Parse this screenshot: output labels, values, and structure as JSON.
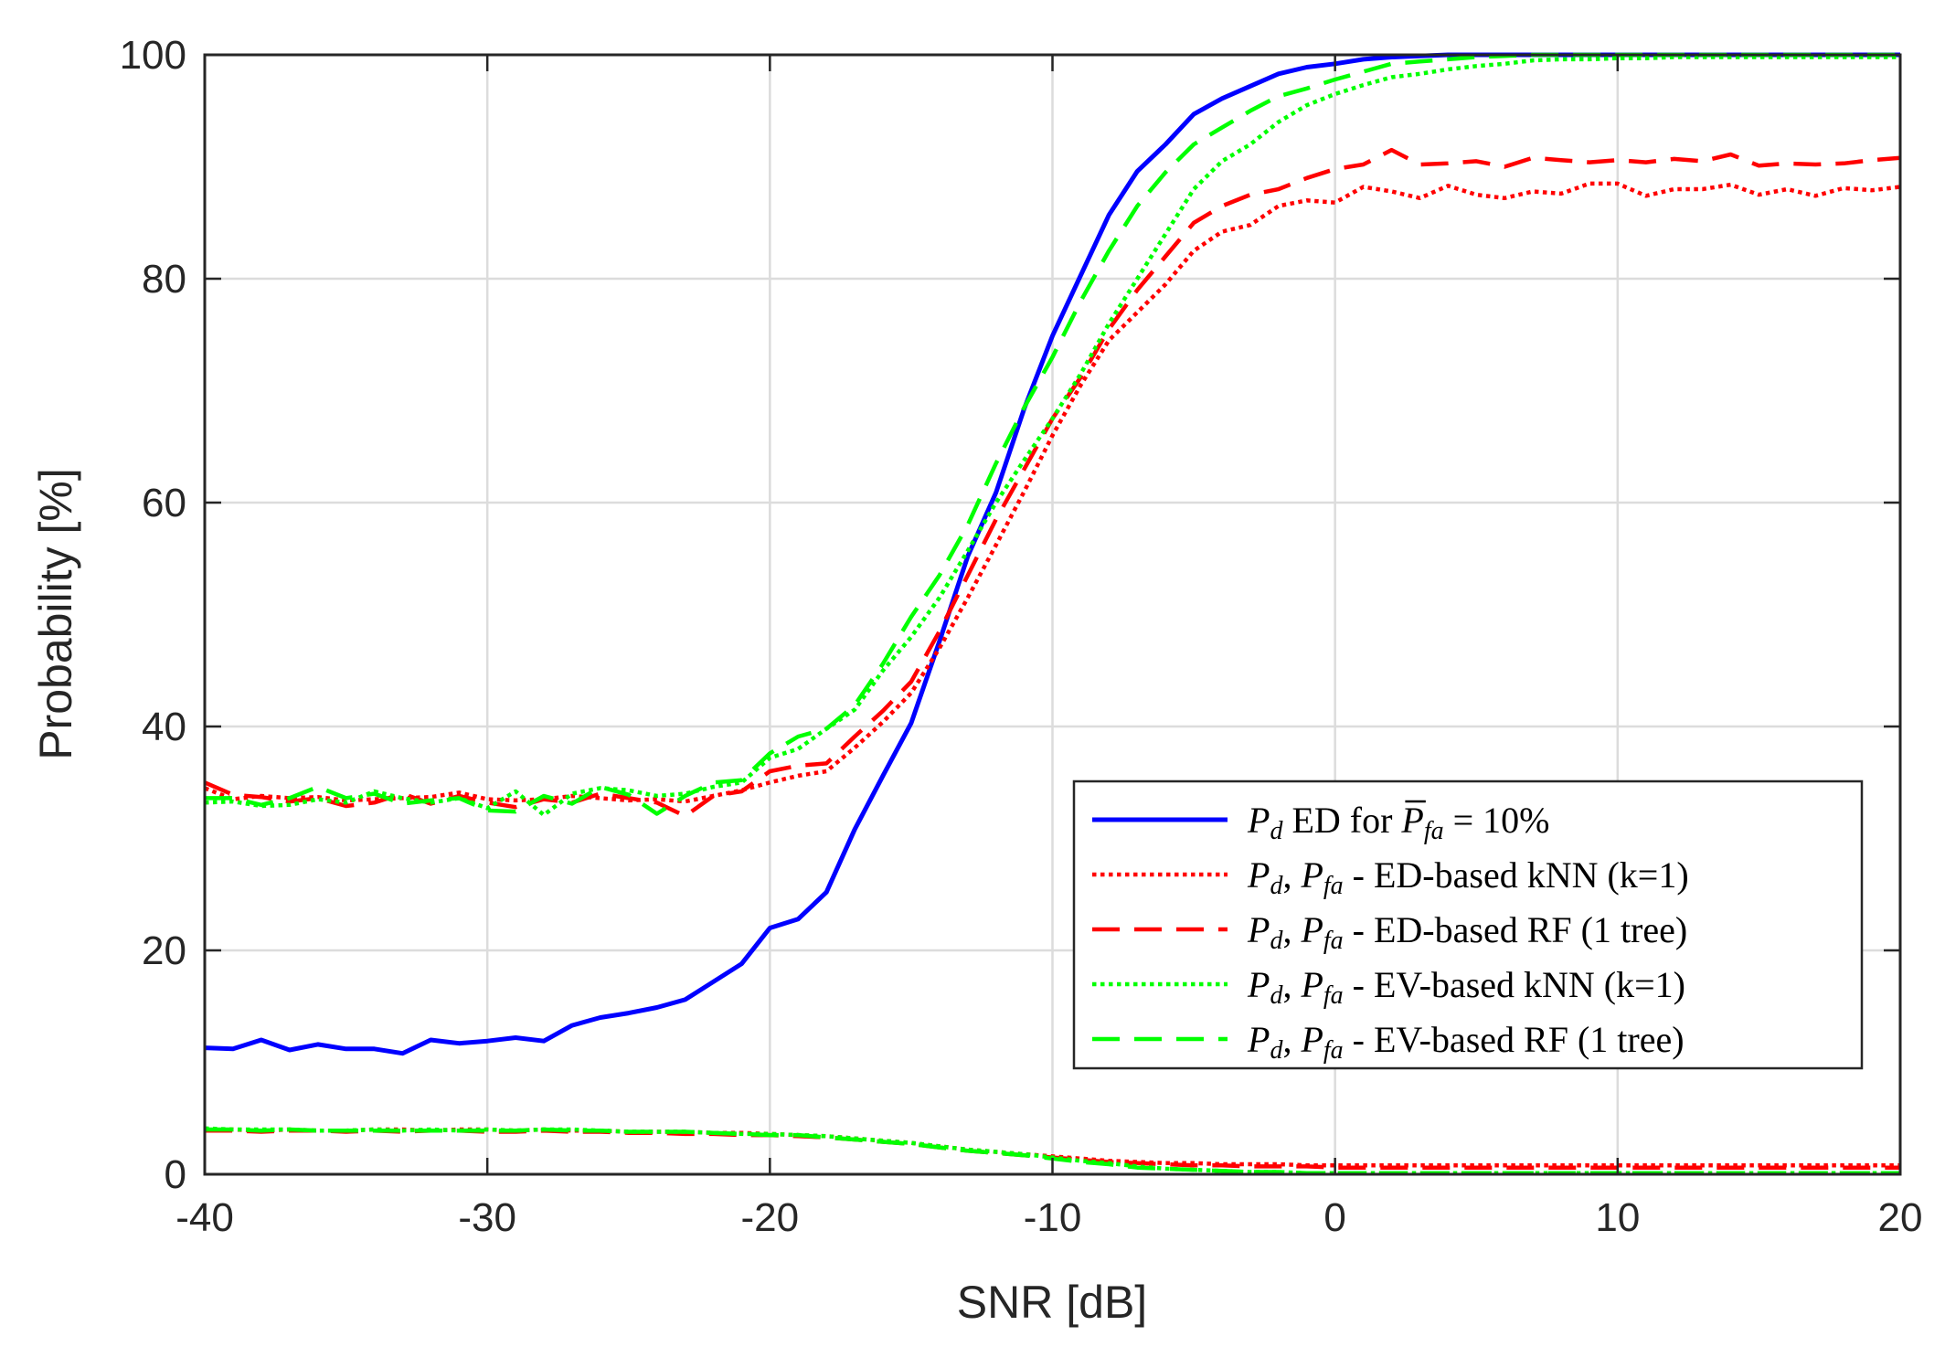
{
  "chart_data": {
    "type": "line",
    "title": "",
    "xlabel": "SNR [dB]",
    "ylabel": "Probability [%]",
    "xlim": [
      -40,
      20
    ],
    "ylim": [
      0,
      100
    ],
    "xticks": [
      "-40",
      "-30",
      "-20",
      "-10",
      "0",
      "10",
      "20"
    ],
    "yticks": [
      "0",
      "20",
      "40",
      "60",
      "80",
      "100"
    ],
    "grid": true,
    "legend_position": "lower-right",
    "x": [
      -40,
      -39,
      -38,
      -37,
      -36,
      -35,
      -34,
      -33,
      -32,
      -31,
      -30,
      -29,
      -28,
      -27,
      -26,
      -25,
      -24,
      -23,
      -22,
      -21,
      -20,
      -19,
      -18,
      -17,
      -16,
      -15,
      -14,
      -13,
      -12,
      -11,
      -10,
      -9,
      -8,
      -7,
      -6,
      -5,
      -4,
      -3,
      -2,
      -1,
      0,
      1,
      2,
      3,
      4,
      5,
      6,
      7,
      8,
      9,
      10,
      11,
      12,
      13,
      14,
      15,
      16,
      17,
      18,
      19,
      20
    ],
    "series": [
      {
        "name": "Pd ED for Pfa = 10%",
        "color": "#0000ff",
        "style": "solid",
        "values": [
          11.3,
          11.2,
          12.0,
          11.1,
          11.6,
          11.2,
          11.2,
          10.8,
          12.0,
          11.7,
          11.9,
          12.2,
          11.9,
          13.3,
          14.0,
          14.4,
          14.9,
          15.6,
          17.2,
          18.8,
          22.0,
          22.8,
          25.2,
          30.8,
          35.6,
          40.3,
          47.6,
          55.2,
          60.9,
          68.4,
          74.9,
          80.3,
          85.7,
          89.6,
          92.0,
          94.7,
          96.1,
          97.2,
          98.3,
          98.9,
          99.2,
          99.6,
          99.8,
          99.9,
          100,
          100,
          100,
          100,
          100,
          100,
          100,
          100,
          100,
          100,
          100,
          100,
          100,
          100,
          100,
          100,
          100
        ]
      },
      {
        "name": "Pd, Pfa - ED-based kNN (k=1)",
        "color": "#ff0000",
        "style": "dotted",
        "values": [
          34.5,
          33.5,
          33.8,
          33.6,
          33.7,
          33.4,
          33.5,
          33.6,
          33.7,
          34.1,
          33.5,
          33.4,
          33.5,
          33.8,
          33.6,
          33.4,
          33.5,
          33.3,
          33.8,
          34.3,
          35.0,
          35.6,
          36.0,
          38.1,
          40.4,
          43.0,
          47.0,
          51.5,
          56.2,
          61.0,
          66.0,
          70.5,
          74.5,
          77.0,
          79.5,
          82.5,
          84.2,
          84.8,
          86.5,
          87.0,
          86.8,
          88.2,
          87.8,
          87.2,
          88.3,
          87.5,
          87.2,
          87.8,
          87.6,
          88.5,
          88.5,
          87.4,
          88.0,
          88.0,
          88.4,
          87.5,
          88.0,
          87.4,
          88.1,
          87.9,
          88.2
        ]
      },
      {
        "name": "Pd, Pfa - ED-based RF (1 tree)",
        "color": "#ff0000",
        "style": "dashed",
        "values": [
          35.0,
          33.9,
          33.7,
          33.3,
          33.6,
          32.9,
          33.2,
          34.0,
          33.1,
          33.8,
          33.2,
          32.8,
          33.5,
          33.2,
          34.0,
          33.6,
          33.2,
          32.0,
          33.8,
          34.2,
          36.0,
          36.5,
          36.7,
          39.1,
          41.4,
          44.0,
          48.5,
          53.5,
          58.5,
          63.0,
          67.5,
          71.2,
          75.5,
          79.0,
          82.0,
          85.0,
          86.5,
          87.5,
          88.0,
          89.0,
          89.8,
          90.2,
          91.5,
          90.2,
          90.3,
          90.5,
          90.0,
          90.8,
          90.6,
          90.4,
          90.6,
          90.4,
          90.7,
          90.5,
          91.1,
          90.1,
          90.3,
          90.2,
          90.3,
          90.6,
          90.8
        ]
      },
      {
        "name": "Pd, Pfa - EV-based kNN (k=1)",
        "color": "#00ff00",
        "style": "dotted",
        "values": [
          33.2,
          33.3,
          32.9,
          33.0,
          33.5,
          33.2,
          34.2,
          33.6,
          33.2,
          33.6,
          32.7,
          34.2,
          32.1,
          34.0,
          34.5,
          34.3,
          33.8,
          34.0,
          34.6,
          35.0,
          37.2,
          38.0,
          39.8,
          41.5,
          45.0,
          48.0,
          51.5,
          55.7,
          60.0,
          63.8,
          67.5,
          71.5,
          76.0,
          80.0,
          84.0,
          88.0,
          90.5,
          92.0,
          94.0,
          95.5,
          96.5,
          97.3,
          98.0,
          98.3,
          98.7,
          99.0,
          99.2,
          99.5,
          99.6,
          99.6,
          99.7,
          99.7,
          99.8,
          99.8,
          99.8,
          99.8,
          99.8,
          99.8,
          99.8,
          99.8,
          99.8
        ]
      },
      {
        "name": "Pd, Pfa - EV-based RF (1 tree)",
        "color": "#00ff00",
        "style": "dashed",
        "values": [
          33.6,
          33.6,
          33.0,
          33.6,
          34.6,
          33.6,
          34.0,
          33.1,
          33.4,
          33.6,
          32.5,
          32.4,
          33.8,
          33.1,
          34.6,
          33.9,
          32.2,
          33.8,
          35.0,
          35.2,
          37.6,
          39.1,
          39.8,
          41.9,
          45.6,
          49.8,
          53.5,
          58.0,
          63.5,
          68.5,
          73.0,
          78.0,
          82.5,
          86.5,
          89.5,
          92.0,
          93.5,
          95.0,
          96.3,
          97.0,
          97.8,
          98.5,
          99.2,
          99.4,
          99.6,
          99.8,
          99.9,
          100,
          100,
          100,
          100,
          100,
          100,
          100,
          100,
          100,
          100,
          100,
          100,
          100,
          100
        ]
      },
      {
        "name": "Pfa - ED-based kNN (k=1)",
        "color": "#ff0000",
        "style": "dotted",
        "values": [
          4.0,
          4.0,
          3.9,
          4.0,
          3.9,
          3.9,
          4.0,
          4.0,
          3.9,
          4.0,
          4.0,
          3.9,
          4.0,
          3.9,
          3.9,
          3.8,
          3.8,
          3.8,
          3.7,
          3.7,
          3.6,
          3.5,
          3.4,
          3.2,
          3.0,
          2.8,
          2.5,
          2.2,
          2.0,
          1.8,
          1.6,
          1.4,
          1.2,
          1.1,
          1.0,
          1.0,
          0.9,
          0.9,
          0.9,
          0.8,
          0.8,
          0.8,
          0.8,
          0.8,
          0.8,
          0.8,
          0.8,
          0.8,
          0.8,
          0.8,
          0.8,
          0.8,
          0.8,
          0.8,
          0.8,
          0.8,
          0.8,
          0.8,
          0.8,
          0.8,
          0.8
        ]
      },
      {
        "name": "Pfa - ED-based RF (1 tree)",
        "color": "#ff0000",
        "style": "dashed",
        "values": [
          3.9,
          3.9,
          3.8,
          3.9,
          3.9,
          3.8,
          3.9,
          3.8,
          3.9,
          3.9,
          3.8,
          3.8,
          3.9,
          3.8,
          3.8,
          3.7,
          3.7,
          3.6,
          3.6,
          3.5,
          3.5,
          3.4,
          3.3,
          3.1,
          2.9,
          2.7,
          2.4,
          2.1,
          1.9,
          1.7,
          1.5,
          1.3,
          1.1,
          1.0,
          0.9,
          0.8,
          0.8,
          0.7,
          0.7,
          0.7,
          0.6,
          0.6,
          0.6,
          0.6,
          0.6,
          0.6,
          0.6,
          0.6,
          0.6,
          0.6,
          0.6,
          0.6,
          0.6,
          0.6,
          0.6,
          0.6,
          0.6,
          0.6,
          0.6,
          0.6,
          0.6
        ]
      },
      {
        "name": "Pfa - EV-based kNN (k=1)",
        "color": "#00ff00",
        "style": "dotted",
        "values": [
          4.1,
          4.0,
          4.0,
          4.0,
          3.9,
          3.9,
          4.0,
          3.9,
          4.0,
          3.9,
          4.0,
          3.9,
          4.0,
          4.0,
          3.9,
          3.8,
          3.8,
          3.8,
          3.7,
          3.6,
          3.6,
          3.5,
          3.4,
          3.2,
          3.0,
          2.8,
          2.5,
          2.2,
          2.0,
          1.8,
          1.5,
          1.2,
          1.0,
          0.7,
          0.5,
          0.4,
          0.3,
          0.2,
          0.2,
          0.1,
          0.1,
          0.1,
          0.1,
          0.1,
          0.1,
          0.1,
          0.1,
          0.1,
          0.1,
          0.1,
          0.1,
          0.1,
          0.1,
          0.1,
          0.1,
          0.1,
          0.1,
          0.1,
          0.1,
          0.1,
          0.1
        ]
      },
      {
        "name": "Pfa - EV-based RF (1 tree)",
        "color": "#00ff00",
        "style": "dashed",
        "values": [
          4.0,
          4.0,
          3.9,
          4.0,
          3.9,
          3.9,
          3.9,
          3.9,
          3.9,
          3.9,
          3.9,
          3.9,
          4.0,
          3.9,
          3.9,
          3.8,
          3.8,
          3.8,
          3.7,
          3.6,
          3.5,
          3.5,
          3.3,
          3.1,
          2.9,
          2.7,
          2.4,
          2.1,
          1.9,
          1.7,
          1.4,
          1.1,
          0.9,
          0.6,
          0.5,
          0.4,
          0.3,
          0.2,
          0.2,
          0.1,
          0.1,
          0.1,
          0.1,
          0.1,
          0.1,
          0.1,
          0.1,
          0.1,
          0.1,
          0.1,
          0.1,
          0.1,
          0.1,
          0.1,
          0.1,
          0.1,
          0.1,
          0.1,
          0.1,
          0.1,
          0.1
        ]
      }
    ],
    "legend": [
      {
        "color": "#0000ff",
        "style": "solid",
        "s1": "P",
        "s1sub": "d",
        "t1": " ED for ",
        "s2": "P",
        "s2sub": "fa",
        "t2": " = 10%"
      },
      {
        "color": "#ff0000",
        "style": "dotted",
        "s1": "P",
        "s1sub": "d",
        "t1": ", ",
        "s2": "P",
        "s2sub": "fa",
        "t2": " - ED-based kNN (k=1)"
      },
      {
        "color": "#ff0000",
        "style": "dashed",
        "s1": "P",
        "s1sub": "d",
        "t1": ", ",
        "s2": "P",
        "s2sub": "fa",
        "t2": " - ED-based RF (1 tree)"
      },
      {
        "color": "#00ff00",
        "style": "dotted",
        "s1": "P",
        "s1sub": "d",
        "t1": ", ",
        "s2": "P",
        "s2sub": "fa",
        "t2": " - EV-based kNN (k=1)"
      },
      {
        "color": "#00ff00",
        "style": "dashed",
        "s1": "P",
        "s1sub": "d",
        "t1": ", ",
        "s2": "P",
        "s2sub": "fa",
        "t2": " - EV-based RF (1 tree)"
      }
    ]
  }
}
